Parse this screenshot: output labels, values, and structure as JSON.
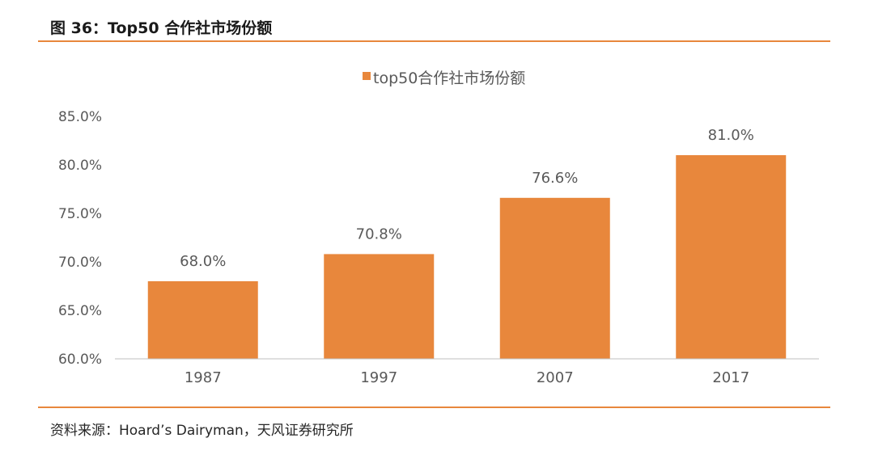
{
  "figure": {
    "title": "图 36：Top50 合作社市场份额",
    "source": "资料来源：Hoard’s Dairyman，天风证券研究所"
  },
  "colors": {
    "accent": "#e8873c",
    "bar": "#e8873c",
    "axis": "#bfbfbf",
    "text": "#595959"
  },
  "chart_data": {
    "type": "bar",
    "title": "",
    "xlabel": "",
    "ylabel": "",
    "categories": [
      "1987",
      "1997",
      "2007",
      "2017"
    ],
    "series": [
      {
        "name": "top50合作社市场份额",
        "values": [
          68.0,
          70.8,
          76.6,
          81.0
        ],
        "data_labels": [
          "68.0%",
          "70.8%",
          "76.6%",
          "81.0%"
        ]
      }
    ],
    "ylim": [
      60.0,
      85.0
    ],
    "yticks": [
      60.0,
      65.0,
      70.0,
      75.0,
      80.0,
      85.0
    ],
    "ytick_labels": [
      "60.0%",
      "65.0%",
      "70.0%",
      "75.0%",
      "80.0%",
      "85.0%"
    ],
    "grid": false,
    "legend": "top-center"
  }
}
